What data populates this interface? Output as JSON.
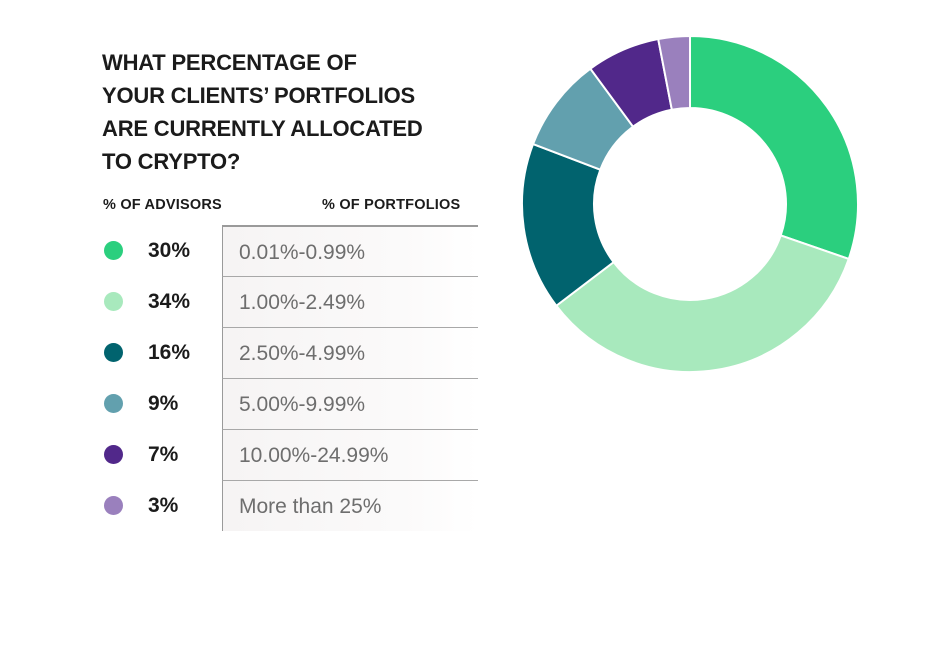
{
  "title": "WHAT PERCENTAGE OF YOUR CLIENTS’ PORTFOLIOS ARE CURRENTLY ALLOCATED TO CRYPTO?",
  "title_lines": [
    "WHAT PERCENTAGE OF",
    "YOUR CLIENTS’ PORTFOLIOS",
    "ARE CURRENTLY ALLOCATED",
    "TO CRYPTO?"
  ],
  "columns": {
    "left": "% OF ADVISORS",
    "right": "% OF PORTFOLIOS"
  },
  "chart_data": {
    "type": "pie",
    "style": "donut",
    "title": "WHAT PERCENTAGE OF YOUR CLIENTS’ PORTFOLIOS ARE CURRENTLY ALLOCATED TO CRYPTO?",
    "categories": [
      "0.01%-0.99%",
      "1.00%-2.49%",
      "2.50%-4.99%",
      "5.00%-9.99%",
      "10.00%-24.99%",
      "More than 25%"
    ],
    "values": [
      30,
      34,
      16,
      9,
      7,
      3
    ],
    "labels": [
      "30%",
      "34%",
      "16%",
      "9%",
      "7%",
      "3%"
    ],
    "colors": [
      "#2bcf7e",
      "#a8e9bd",
      "#01636e",
      "#62a0ae",
      "#51288a",
      "#9a80bd"
    ],
    "legend_position": "left"
  }
}
